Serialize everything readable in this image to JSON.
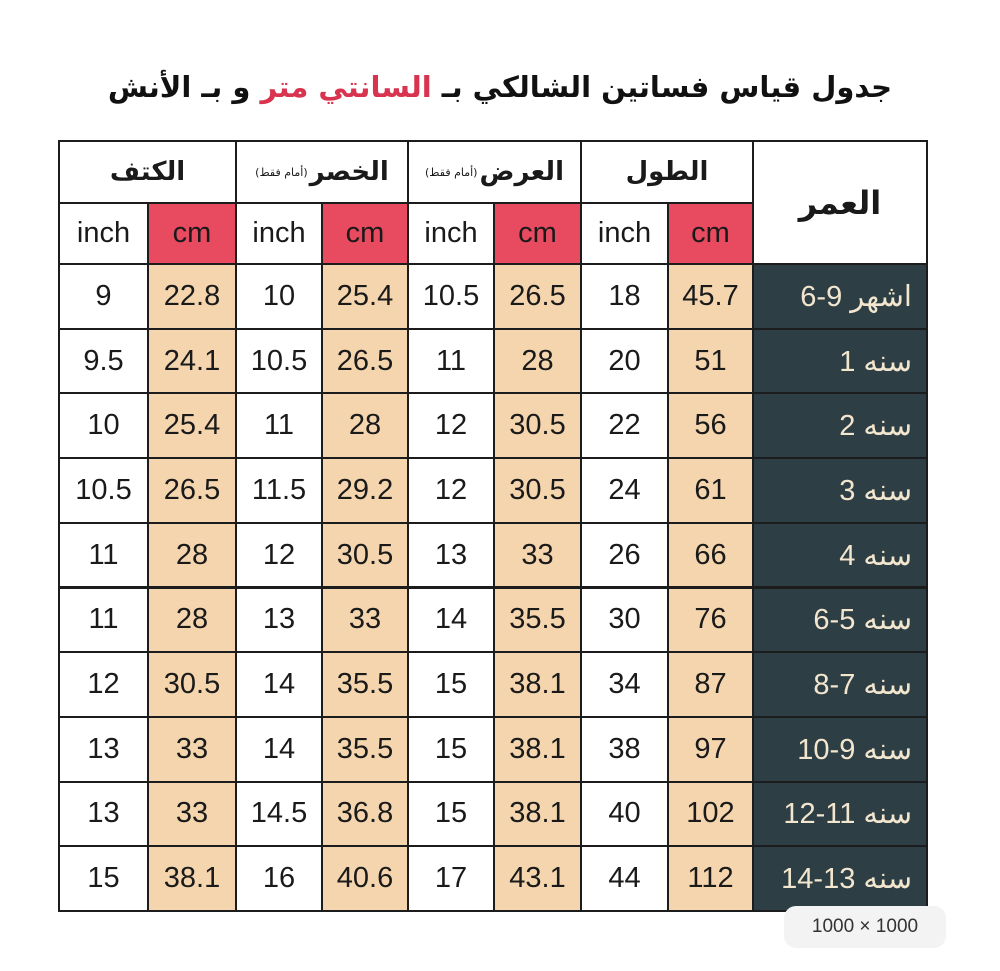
{
  "header": {
    "title": {
      "before": "جدول قياس فساتين الشالكي بـ ",
      "highlight": "السانتي متر",
      "after": " و بـ الأنش"
    }
  },
  "table": {
    "age_header": "العمر",
    "units": [
      "cm",
      "inch"
    ],
    "groups": [
      {
        "name": "الطول"
      },
      {
        "name": "العرض",
        "note": "(أمام فقط)"
      },
      {
        "name": "الخصر",
        "note": "(أمام فقط)"
      },
      {
        "name": "الكتف"
      }
    ],
    "rows": [
      [
        "6-9 اشهر",
        45.7,
        18,
        26.5,
        10.5,
        25.4,
        10,
        22.8,
        9
      ],
      [
        "1 سنه",
        51,
        20,
        28,
        11,
        26.5,
        10.5,
        24.1,
        9.5
      ],
      [
        "2 سنه",
        56,
        22,
        30.5,
        12,
        28,
        11,
        25.4,
        10
      ],
      [
        "3 سنه",
        61,
        24,
        30.5,
        12,
        29.2,
        11.5,
        26.5,
        10.5
      ],
      [
        "4 سنه",
        66,
        26,
        33,
        13,
        30.5,
        12,
        28,
        11
      ],
      [
        "6-5 سنه",
        76,
        30,
        35.5,
        14,
        33,
        13,
        28,
        11
      ],
      [
        "8-7 سنه",
        87,
        34,
        38.1,
        15,
        35.5,
        14,
        30.5,
        12
      ],
      [
        "10-9 سنه",
        97,
        38,
        38.1,
        15,
        35.5,
        14,
        33,
        13
      ],
      [
        "12-11 سنه",
        102,
        40,
        38.1,
        15,
        36.8,
        14.5,
        33,
        13
      ],
      [
        "14-13 سنه",
        112,
        44,
        43.1,
        17,
        40.6,
        16,
        38.1,
        15
      ]
    ]
  },
  "badge": "1000 × 1000"
}
